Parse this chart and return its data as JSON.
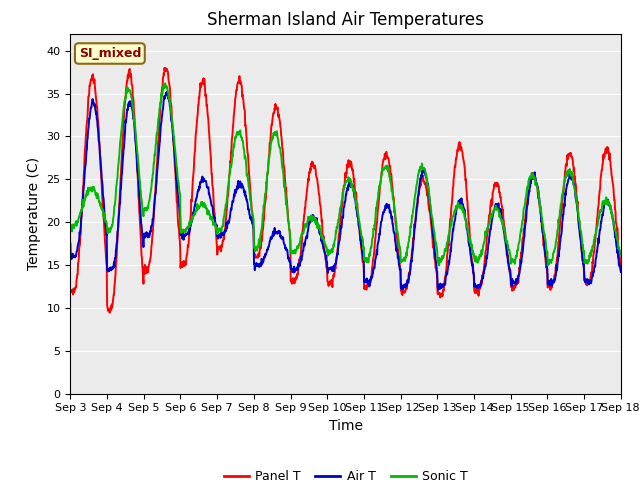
{
  "title": "Sherman Island Air Temperatures",
  "xlabel": "Time",
  "ylabel": "Temperature (C)",
  "annotation": "SI_mixed",
  "ylim": [
    0,
    42
  ],
  "yticks": [
    0,
    5,
    10,
    15,
    20,
    25,
    30,
    35,
    40
  ],
  "xtick_labels": [
    "Sep 3",
    "Sep 4",
    "Sep 5",
    "Sep 6",
    "Sep 7",
    "Sep 8",
    "Sep 9",
    "Sep 10",
    "Sep 11",
    "Sep 12",
    "Sep 13",
    "Sep 14",
    "Sep 15",
    "Sep 16",
    "Sep 17",
    "Sep 18"
  ],
  "colors": {
    "panel": "#FF0000",
    "air": "#0000CC",
    "sonic": "#00BB00"
  },
  "legend_labels": [
    "Panel T",
    "Air T",
    "Sonic T"
  ],
  "bg_color": "#EBEBEB",
  "title_fontsize": 12,
  "axis_fontsize": 10,
  "tick_fontsize": 8,
  "linewidth": 1.4,
  "panel_peaks": [
    37.0,
    37.5,
    38.0,
    36.5,
    36.5,
    33.5,
    26.8,
    27.0,
    28.0,
    25.0,
    29.0,
    24.5,
    25.5,
    28.0,
    28.5
  ],
  "panel_mins": [
    12.0,
    9.8,
    14.5,
    15.0,
    17.0,
    16.0,
    13.0,
    13.0,
    12.5,
    12.0,
    11.5,
    12.0,
    12.5,
    12.5,
    13.0
  ],
  "air_peaks": [
    34.0,
    34.0,
    35.0,
    25.0,
    24.5,
    19.0,
    20.5,
    24.5,
    22.0,
    26.0,
    22.5,
    22.0,
    25.5,
    25.5,
    22.5
  ],
  "air_mins": [
    16.0,
    14.5,
    18.5,
    18.5,
    18.5,
    15.0,
    14.5,
    14.5,
    13.0,
    12.5,
    12.5,
    12.5,
    13.0,
    13.0,
    13.0
  ],
  "sonic_peaks": [
    24.0,
    35.5,
    36.0,
    22.0,
    30.5,
    30.5,
    20.5,
    25.0,
    26.5,
    26.5,
    22.0,
    21.5,
    25.5,
    26.0,
    22.5
  ],
  "sonic_mins": [
    19.5,
    19.0,
    21.5,
    19.0,
    19.0,
    17.0,
    16.5,
    16.5,
    15.5,
    15.5,
    15.5,
    15.5,
    15.5,
    15.5,
    15.5
  ]
}
